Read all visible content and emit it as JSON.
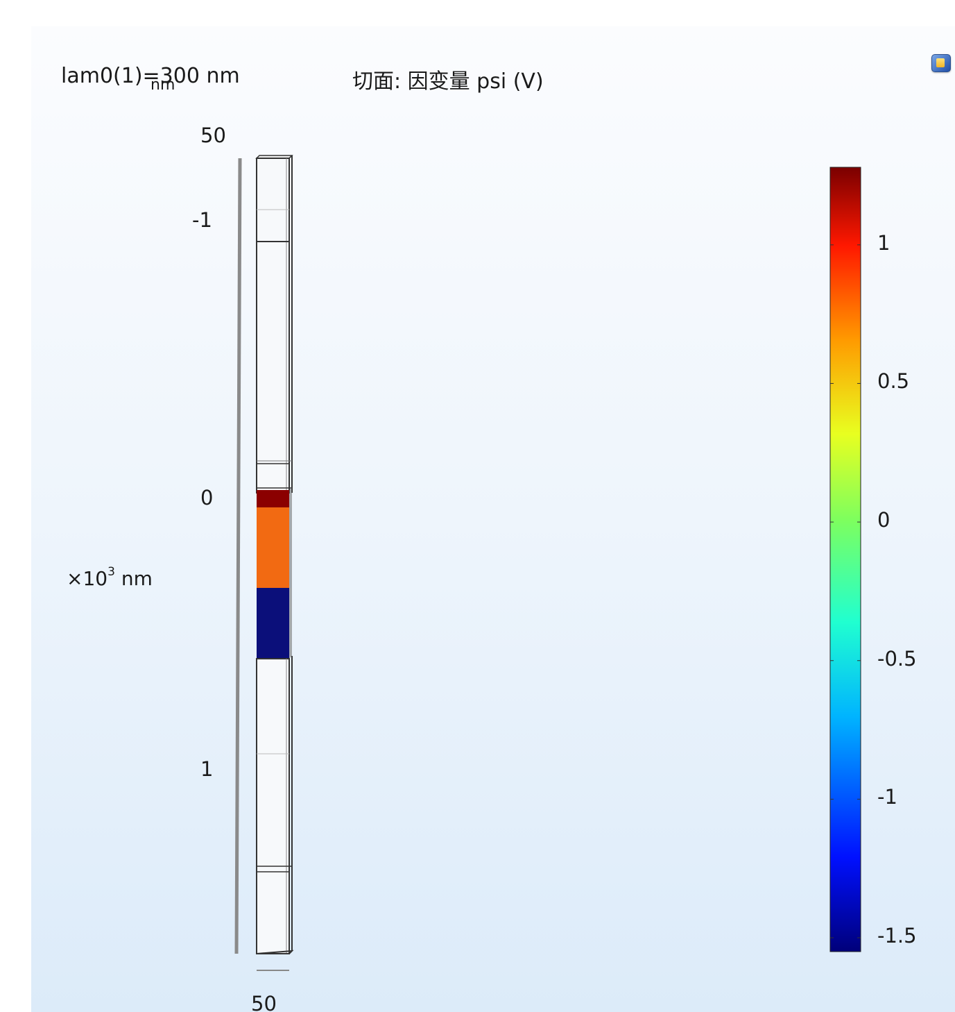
{
  "titles": {
    "param": "lam0(1)=300 nm",
    "small_unit": "nm",
    "plot": "切面: 因变量 psi (V)"
  },
  "axis": {
    "top_tick": "50",
    "bottom_tick": "50",
    "ticks": [
      {
        "label": "-1",
        "value": -1
      },
      {
        "label": "0",
        "value": 0
      },
      {
        "label": "1",
        "value": 1
      }
    ],
    "unit_prefix": "×10",
    "unit_exp": "3",
    "unit_suffix": " nm"
  },
  "colorbar": {
    "min": -1.55,
    "max": 1.28,
    "ticks": [
      {
        "label": "1",
        "value": 1
      },
      {
        "label": "0.5",
        "value": 0.5
      },
      {
        "label": "0",
        "value": 0
      },
      {
        "label": "-0.5",
        "value": -0.5
      },
      {
        "label": "-1",
        "value": -1
      },
      {
        "label": "-1.5",
        "value": -1.5
      }
    ],
    "colormap": "rainbow"
  },
  "colors": {
    "layer_top": "#8b0000",
    "layer_mid": "#f26a12",
    "layer_bottom": "#0b0f7a"
  },
  "icons": {
    "legend_toggle": "legend-icon"
  }
}
